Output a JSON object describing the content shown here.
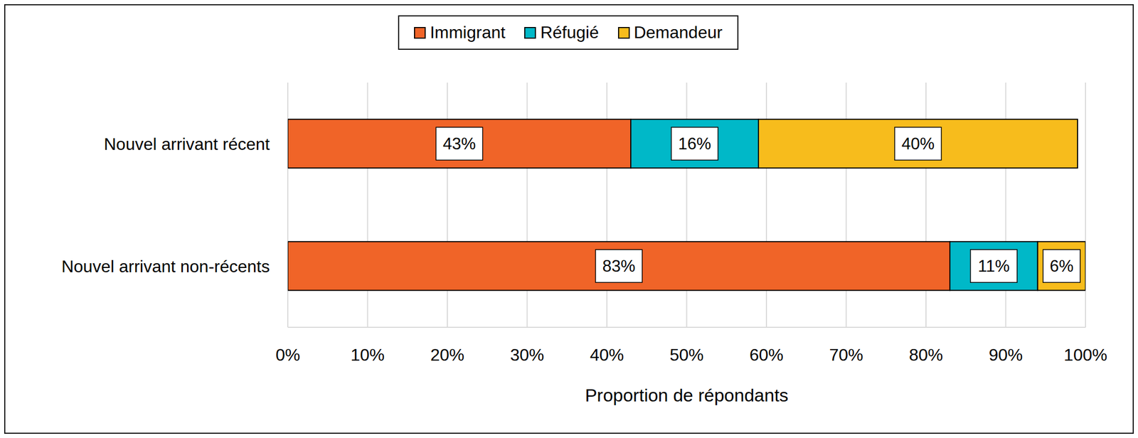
{
  "chart_data": {
    "type": "bar",
    "orientation": "horizontal",
    "stacked": true,
    "data_labels": true,
    "grid": true,
    "legend": "top",
    "xlabel": "Proportion de répondants",
    "categories": [
      "Nouvel arrivant récent",
      "Nouvel arrivant non-récents"
    ],
    "series": [
      {
        "name": "Immigrant",
        "color": "#F06428",
        "values": [
          43,
          83
        ],
        "value_labels": [
          "43%",
          "83%"
        ]
      },
      {
        "name": "Réfugié",
        "color": "#00B8C8",
        "values": [
          16,
          11
        ],
        "value_labels": [
          "16%",
          "11%"
        ]
      },
      {
        "name": "Demandeur",
        "color": "#F7BC1C",
        "values": [
          40,
          6
        ],
        "value_labels": [
          "40%",
          "6%"
        ]
      }
    ],
    "xlim": [
      0,
      100
    ],
    "xticks": [
      {
        "value": 0,
        "label": "0%"
      },
      {
        "value": 10,
        "label": "10%"
      },
      {
        "value": 20,
        "label": "20%"
      },
      {
        "value": 30,
        "label": "30%"
      },
      {
        "value": 40,
        "label": "40%"
      },
      {
        "value": 50,
        "label": "50%"
      },
      {
        "value": 60,
        "label": "60%"
      },
      {
        "value": 70,
        "label": "70%"
      },
      {
        "value": 80,
        "label": "80%"
      },
      {
        "value": 90,
        "label": "90%"
      },
      {
        "value": 100,
        "label": "100%"
      }
    ]
  }
}
